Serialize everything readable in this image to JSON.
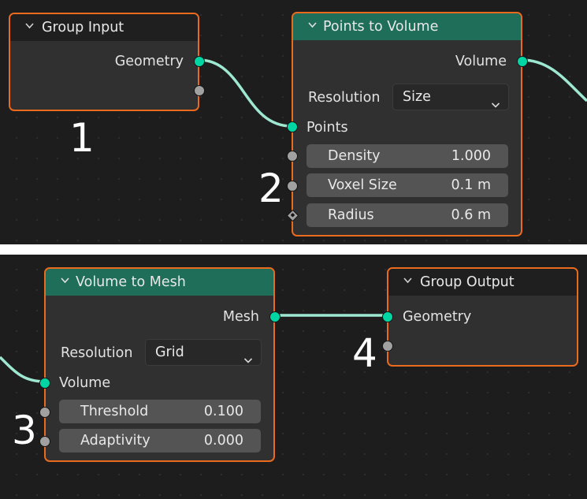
{
  "top_panel": {
    "group_input": {
      "title": "Group Input",
      "outputs": [
        "Geometry"
      ]
    },
    "points_to_volume": {
      "title": "Points to Volume",
      "output": "Volume",
      "resolution_label": "Resolution",
      "resolution_value": "Size",
      "input_points": "Points",
      "fields": [
        {
          "name": "Density",
          "value": "1.000"
        },
        {
          "name": "Voxel Size",
          "value": "0.1 m"
        },
        {
          "name": "Radius",
          "value": "0.6 m"
        }
      ]
    },
    "markers": [
      "1",
      "2"
    ]
  },
  "bottom_panel": {
    "volume_to_mesh": {
      "title": "Volume to Mesh",
      "output": "Mesh",
      "resolution_label": "Resolution",
      "resolution_value": "Grid",
      "input_volume": "Volume",
      "fields": [
        {
          "name": "Threshold",
          "value": "0.100"
        },
        {
          "name": "Adaptivity",
          "value": "0.000"
        }
      ]
    },
    "group_output": {
      "title": "Group Output",
      "inputs": [
        "Geometry"
      ]
    },
    "markers": [
      "3",
      "4"
    ]
  },
  "colors": {
    "background": "#1d1d1d",
    "node_body": "#303030",
    "node_border_selected": "#ea6a1e",
    "geometry_socket": "#00d6a3",
    "float_socket": "#a1a1a1",
    "link": "#9ee8d2",
    "header_geometry": "#1e6e5a"
  }
}
